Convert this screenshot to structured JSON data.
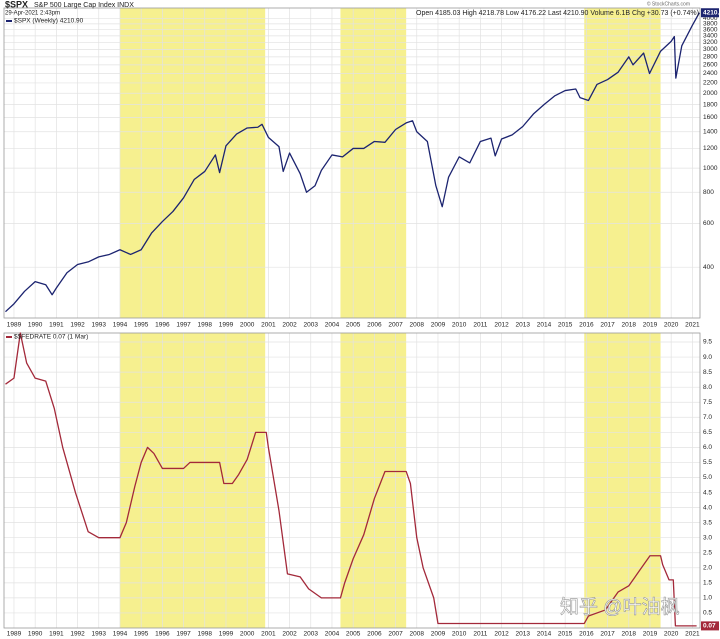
{
  "header": {
    "symbol": "$SPX",
    "name": "S&P 500 Large Cap Index INDX",
    "date": "29-Apr-2021 2:43pm",
    "quote": "Open 4185.03  High 4218.78  Low 4176.22  Last 4210.90  Volume 6.1B  Chg +30.73 (+0.74%)",
    "credit": "© StockCharts.com"
  },
  "watermark": "知乎 @叶油枫",
  "chart_data": [
    {
      "type": "line",
      "log_scale": true,
      "grid": true,
      "highlight_color": "#f6f08f",
      "highlights": [
        [
          1994,
          2000.85
        ],
        [
          2004.4,
          2007.5
        ],
        [
          2015.9,
          2019.5
        ]
      ],
      "xlim": [
        1988.53,
        2021.36
      ],
      "xticks": [
        1989,
        1990,
        1991,
        1992,
        1993,
        1994,
        1995,
        1996,
        1997,
        1998,
        1999,
        2000,
        2001,
        2002,
        2003,
        2004,
        2005,
        2006,
        2007,
        2008,
        2009,
        2010,
        2011,
        2012,
        2013,
        2014,
        2015,
        2016,
        2017,
        2018,
        2019,
        2020,
        2021
      ],
      "ylim": [
        250,
        4400
      ],
      "yticks": [
        400,
        600,
        800,
        1000,
        1200,
        1400,
        1600,
        1800,
        2000,
        2200,
        2400,
        2600,
        2800,
        3000,
        3200,
        3400,
        3600,
        3800,
        4000
      ],
      "x": [
        1988.6,
        1989.0,
        1989.5,
        1990.0,
        1990.5,
        1990.8,
        1991.0,
        1991.5,
        1992.0,
        1992.5,
        1993.0,
        1993.5,
        1994.0,
        1994.5,
        1995.0,
        1995.5,
        1996.0,
        1996.5,
        1997.0,
        1997.5,
        1998.0,
        1998.5,
        1998.7,
        1999.0,
        1999.5,
        2000.0,
        2000.5,
        2000.7,
        2001.0,
        2001.5,
        2001.7,
        2002.0,
        2002.5,
        2002.8,
        2003.2,
        2003.5,
        2004.0,
        2004.5,
        2005.0,
        2005.5,
        2006.0,
        2006.5,
        2007.0,
        2007.5,
        2007.8,
        2008.0,
        2008.5,
        2008.9,
        2009.2,
        2009.5,
        2010.0,
        2010.5,
        2011.0,
        2011.5,
        2011.7,
        2012.0,
        2012.5,
        2013.0,
        2013.5,
        2014.0,
        2014.5,
        2015.0,
        2015.5,
        2015.7,
        2016.1,
        2016.5,
        2017.0,
        2017.5,
        2018.0,
        2018.2,
        2018.7,
        2018.98,
        2019.5,
        2020.0,
        2020.15,
        2020.22,
        2020.5,
        2021.0,
        2021.33
      ],
      "series": [
        {
          "name": "$SPX (Weekly) 4210.90",
          "color": "#1c2470",
          "values": [
            265,
            285,
            320,
            350,
            340,
            310,
            330,
            380,
            410,
            420,
            440,
            450,
            470,
            450,
            470,
            550,
            610,
            670,
            760,
            900,
            970,
            1130,
            960,
            1230,
            1370,
            1450,
            1460,
            1500,
            1330,
            1220,
            970,
            1150,
            950,
            800,
            850,
            980,
            1130,
            1110,
            1200,
            1200,
            1280,
            1270,
            1430,
            1520,
            1550,
            1400,
            1280,
            850,
            700,
            920,
            1110,
            1050,
            1280,
            1320,
            1120,
            1310,
            1360,
            1470,
            1650,
            1800,
            1950,
            2050,
            2080,
            1920,
            1870,
            2170,
            2270,
            2430,
            2800,
            2600,
            2900,
            2400,
            2950,
            3230,
            3380,
            2300,
            3100,
            3750,
            4210.9
          ]
        }
      ]
    },
    {
      "type": "line",
      "log_scale": false,
      "grid": true,
      "highlight_color": "#f6f08f",
      "highlights": [
        [
          1994,
          2000.85
        ],
        [
          2004.4,
          2007.5
        ],
        [
          2015.9,
          2019.5
        ]
      ],
      "xlim": [
        1988.53,
        2021.36
      ],
      "xticks": [
        1989,
        1990,
        1991,
        1992,
        1993,
        1994,
        1995,
        1996,
        1997,
        1998,
        1999,
        2000,
        2001,
        2002,
        2003,
        2004,
        2005,
        2006,
        2007,
        2008,
        2009,
        2010,
        2011,
        2012,
        2013,
        2014,
        2015,
        2016,
        2017,
        2018,
        2019,
        2020,
        2021
      ],
      "ylim": [
        0,
        9.8
      ],
      "yticks": [
        0.5,
        {
          "value": 1,
          "label": "1.0"
        },
        1.5,
        {
          "value": 2,
          "label": "2.0"
        },
        2.5,
        {
          "value": 3,
          "label": "3.0"
        },
        3.5,
        {
          "value": 4,
          "label": "4.0"
        },
        4.5,
        {
          "value": 5,
          "label": "5.0"
        },
        5.5,
        {
          "value": 6,
          "label": "6.0"
        },
        6.5,
        {
          "value": 7,
          "label": "7.0"
        },
        7.5,
        {
          "value": 8,
          "label": "8.0"
        },
        8.5,
        {
          "value": 9,
          "label": "9.0"
        },
        9.5
      ],
      "x": [
        1988.6,
        1989.0,
        1989.3,
        1989.6,
        1990.0,
        1990.5,
        1990.9,
        1991.3,
        1991.9,
        1992.5,
        1993.0,
        1993.5,
        1994.0,
        1994.3,
        1994.7,
        1995.0,
        1995.3,
        1995.6,
        1996.0,
        1996.5,
        1997.0,
        1997.3,
        1998.0,
        1998.7,
        1998.9,
        1999.3,
        1999.6,
        2000.0,
        2000.4,
        2000.9,
        2001.0,
        2001.5,
        2001.9,
        2002.5,
        2002.9,
        2003.5,
        2004.4,
        2004.6,
        2005.0,
        2005.5,
        2006.0,
        2006.5,
        2007.5,
        2007.7,
        2008.0,
        2008.3,
        2008.8,
        2009.0,
        2010.0,
        2015.9,
        2016.1,
        2016.9,
        2017.3,
        2017.5,
        2018.0,
        2018.5,
        2019.0,
        2019.5,
        2019.6,
        2019.9,
        2020.1,
        2020.2,
        2021.2
      ],
      "series": [
        {
          "name": "$$FEDRATE 0.07 (1 Mar)",
          "color": "#a3293a",
          "values": [
            8.1,
            8.3,
            9.8,
            8.8,
            8.3,
            8.2,
            7.3,
            6.0,
            4.5,
            3.2,
            3.0,
            3.0,
            3.0,
            3.5,
            4.7,
            5.5,
            6.0,
            5.8,
            5.3,
            5.3,
            5.3,
            5.5,
            5.5,
            5.5,
            4.8,
            4.8,
            5.1,
            5.6,
            6.5,
            6.5,
            6.0,
            3.9,
            1.8,
            1.7,
            1.3,
            1.0,
            1.0,
            1.5,
            2.3,
            3.1,
            4.3,
            5.2,
            5.2,
            4.8,
            3.0,
            2.0,
            1.0,
            0.15,
            0.15,
            0.15,
            0.4,
            0.6,
            1.0,
            1.2,
            1.4,
            1.9,
            2.4,
            2.4,
            2.1,
            1.6,
            1.6,
            0.07,
            0.07
          ]
        }
      ]
    }
  ]
}
